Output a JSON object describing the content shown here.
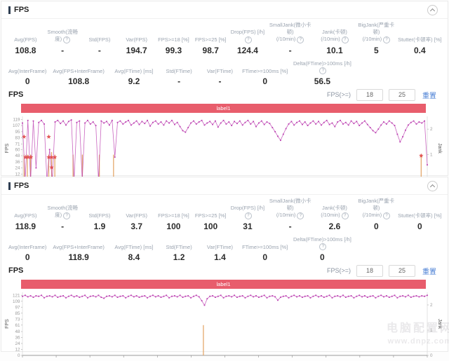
{
  "colors": {
    "banner_red": "#e85d6c",
    "series_magenta": "#bb3eb0",
    "jank_orange": "#e2a05e",
    "star_red": "#e04848",
    "link_blue": "#4a7fd4"
  },
  "watermark": {
    "line1": "电脑配置网",
    "line2": "www.dnpz.com"
  },
  "panels": [
    {
      "title": "FPS",
      "stats_row1": [
        {
          "label": "Avg(FPS)",
          "value": "108.8"
        },
        {
          "label": "Smooth(流畅度)",
          "info": true,
          "value": "-"
        },
        {
          "label": "Std(FPS)",
          "value": "-"
        },
        {
          "label": "Var(FPS)",
          "value": "194.7"
        },
        {
          "label": "FPS>=18 [%]",
          "value": "99.3"
        },
        {
          "label": "FPS>=25 [%]",
          "value": "98.7"
        },
        {
          "label": "Drop(FPS) [/h]",
          "info": true,
          "value": "124.4"
        },
        {
          "label": "SmallJank(微小卡顿)",
          "sub": "(/10min)",
          "info": true,
          "value": "-"
        },
        {
          "label": "Jank(卡顿)",
          "sub": "(/10min)",
          "info": true,
          "value": "10.1"
        },
        {
          "label": "BigJank(严重卡顿)",
          "sub": "(/10min)",
          "info": true,
          "value": "5"
        },
        {
          "label": "Stutter(卡顿率) [%]",
          "value": "0.4"
        }
      ],
      "stats_row2": [
        {
          "label": "Avg(InterFrame)",
          "value": "0"
        },
        {
          "label": "Avg(FPS+InterFrame)",
          "value": "108.8"
        },
        {
          "label": "Avg(FTime) [ms]",
          "value": "9.2"
        },
        {
          "label": "Std(FTime)",
          "value": "-"
        },
        {
          "label": "Var(FTime)",
          "value": "-"
        },
        {
          "label": "FTime>=100ms [%]",
          "value": "0"
        },
        {
          "label": "Delta(FTime)>100ms [/h]",
          "info": true,
          "value": "56.5"
        }
      ],
      "chart": {
        "section_label": "FPS",
        "fps_ge_label": "FPS(>=)",
        "threshold1": "18",
        "threshold2": "25",
        "reset_label": "重置",
        "banner": "label1"
      }
    },
    {
      "title": "FPS",
      "stats_row1": [
        {
          "label": "Avg(FPS)",
          "value": "118.9"
        },
        {
          "label": "Smooth(流畅度)",
          "info": true,
          "value": "-"
        },
        {
          "label": "Std(FPS)",
          "value": "1.9"
        },
        {
          "label": "Var(FPS)",
          "value": "3.7"
        },
        {
          "label": "FPS>=18 [%]",
          "value": "100"
        },
        {
          "label": "FPS>=25 [%]",
          "value": "100"
        },
        {
          "label": "Drop(FPS) [/h]",
          "info": true,
          "value": "31"
        },
        {
          "label": "SmallJank(微小卡顿)",
          "sub": "(/10min)",
          "info": true,
          "value": "-"
        },
        {
          "label": "Jank(卡顿)",
          "sub": "(/10min)",
          "info": true,
          "value": "2.6"
        },
        {
          "label": "BigJank(严重卡顿)",
          "sub": "(/10min)",
          "info": true,
          "value": "0"
        },
        {
          "label": "Stutter(卡顿率) [%]",
          "value": "0"
        }
      ],
      "stats_row2": [
        {
          "label": "Avg(InterFrame)",
          "value": "0"
        },
        {
          "label": "Avg(FPS+InterFrame)",
          "value": "118.9"
        },
        {
          "label": "Avg(FTime) [ms]",
          "value": "8.4"
        },
        {
          "label": "Std(FTime)",
          "value": "1.2"
        },
        {
          "label": "Var(FTime)",
          "value": "1.4"
        },
        {
          "label": "FTime>=100ms [%]",
          "value": "0"
        },
        {
          "label": "Delta(FTime)>100ms [/h]",
          "info": true,
          "value": "0"
        }
      ],
      "chart": {
        "section_label": "FPS",
        "fps_ge_label": "FPS(>=)",
        "threshold1": "18",
        "threshold2": "25",
        "reset_label": "重置",
        "banner": "label1"
      }
    }
  ],
  "chart_data": [
    {
      "type": "line",
      "title": "label1",
      "xlabel": "",
      "ylabel_left": "FPS",
      "ylabel_right": "Jank",
      "left_ticks": [
        0,
        12,
        24,
        36,
        48,
        60,
        71,
        83,
        95,
        107,
        119
      ],
      "right_ticks": [
        0,
        1,
        2
      ],
      "ylim_left": [
        0,
        125
      ],
      "ylim_right": [
        0,
        2.5
      ],
      "grid": false,
      "fps": [
        112,
        0,
        117,
        0,
        116,
        24,
        113,
        117,
        110,
        0,
        60,
        0,
        114,
        117,
        111,
        116,
        108,
        115,
        118,
        0,
        113,
        116,
        0,
        112,
        117,
        110,
        114,
        107,
        0,
        116,
        112,
        115,
        108,
        117,
        45,
        113,
        116,
        110,
        114,
        117,
        108,
        112,
        116,
        109,
        115,
        111,
        117,
        106,
        113,
        116,
        110,
        114,
        108,
        116,
        112,
        117,
        109,
        113,
        105,
        97,
        94,
        103,
        112,
        116,
        110,
        114,
        117,
        108,
        112,
        115,
        109,
        116,
        104,
        112,
        117,
        110,
        114,
        107,
        115,
        111,
        116,
        108,
        113,
        117,
        110,
        115,
        105,
        112,
        116,
        109,
        114,
        111,
        103,
        95,
        86,
        78,
        90,
        101,
        110,
        115,
        108,
        113,
        116,
        109,
        114,
        107,
        112,
        116,
        110,
        115,
        108,
        113,
        117,
        109,
        112,
        105,
        114,
        117,
        110,
        113,
        108,
        116,
        111,
        115,
        107,
        112,
        116,
        109,
        103,
        97,
        93,
        100,
        108,
        114,
        110,
        116,
        112,
        107,
        90,
        75,
        85,
        98,
        108,
        113,
        116,
        110,
        114,
        112,
        116,
        30
      ],
      "jank_events": [
        {
          "x": 0.004,
          "jank": 1
        },
        {
          "x": 0.012,
          "jank": 1
        },
        {
          "x": 0.02,
          "jank": 1
        },
        {
          "x": 0.065,
          "jank": 1
        },
        {
          "x": 0.072,
          "jank": 1.1
        },
        {
          "x": 0.08,
          "jank": 1
        },
        {
          "x": 0.125,
          "jank": 1
        },
        {
          "x": 0.148,
          "jank": 1
        },
        {
          "x": 0.19,
          "jank": 1
        },
        {
          "x": 0.225,
          "jank": 1
        },
        {
          "x": 0.985,
          "jank": 1
        }
      ],
      "stars": [
        {
          "x": 0.004,
          "fps": 85
        },
        {
          "x": 0.065,
          "fps": 85
        },
        {
          "x": 0.008,
          "fps": 45
        },
        {
          "x": 0.014,
          "fps": 45
        },
        {
          "x": 0.021,
          "fps": 45
        },
        {
          "x": 0.065,
          "fps": 45
        },
        {
          "x": 0.072,
          "fps": 45
        },
        {
          "x": 0.08,
          "fps": 45
        },
        {
          "x": 0.072,
          "fps": 25
        },
        {
          "x": 0.985,
          "fps": 48
        }
      ]
    },
    {
      "type": "line",
      "title": "label1",
      "xlabel": "",
      "ylabel_left": "FPS",
      "ylabel_right": "Jank",
      "left_ticks": [
        0,
        12,
        24,
        36,
        48,
        61,
        73,
        85,
        97,
        109,
        121
      ],
      "right_ticks": [
        0,
        1,
        2
      ],
      "ylim_left": [
        0,
        127
      ],
      "ylim_right": [
        0,
        2.5
      ],
      "grid": false,
      "fps": [
        119,
        121,
        118,
        120,
        117,
        120,
        119,
        121,
        116,
        119,
        120,
        118,
        121,
        117,
        119,
        120,
        116,
        119,
        121,
        118,
        120,
        117,
        119,
        121,
        116,
        119,
        120,
        118,
        121,
        117,
        115,
        119,
        120,
        118,
        121,
        117,
        119,
        120,
        116,
        119,
        121,
        118,
        120,
        117,
        119,
        120,
        116,
        119,
        121,
        118,
        120,
        117,
        119,
        121,
        116,
        119,
        120,
        118,
        121,
        117,
        119,
        120,
        116,
        119,
        121,
        118,
        110,
        101,
        114,
        119,
        120,
        117,
        119,
        121,
        116,
        119,
        120,
        118,
        121,
        117,
        119,
        120,
        116,
        119,
        121,
        118,
        120,
        117,
        119,
        121,
        116,
        119,
        120,
        118,
        111,
        117,
        119,
        120,
        116,
        119,
        121,
        118,
        120,
        117,
        119,
        120,
        116,
        119,
        121,
        118,
        120,
        117,
        119,
        121,
        116,
        119,
        120,
        118,
        121,
        117,
        119,
        120,
        116,
        119,
        121,
        118,
        120,
        117,
        119,
        120,
        116,
        119,
        121,
        118,
        120,
        117,
        119,
        121,
        116,
        119,
        120,
        118,
        121,
        117,
        119,
        120,
        118,
        120,
        119,
        121
      ],
      "jank_events": [
        {
          "x": 0.447,
          "jank": 1.2
        }
      ],
      "stars": []
    }
  ]
}
